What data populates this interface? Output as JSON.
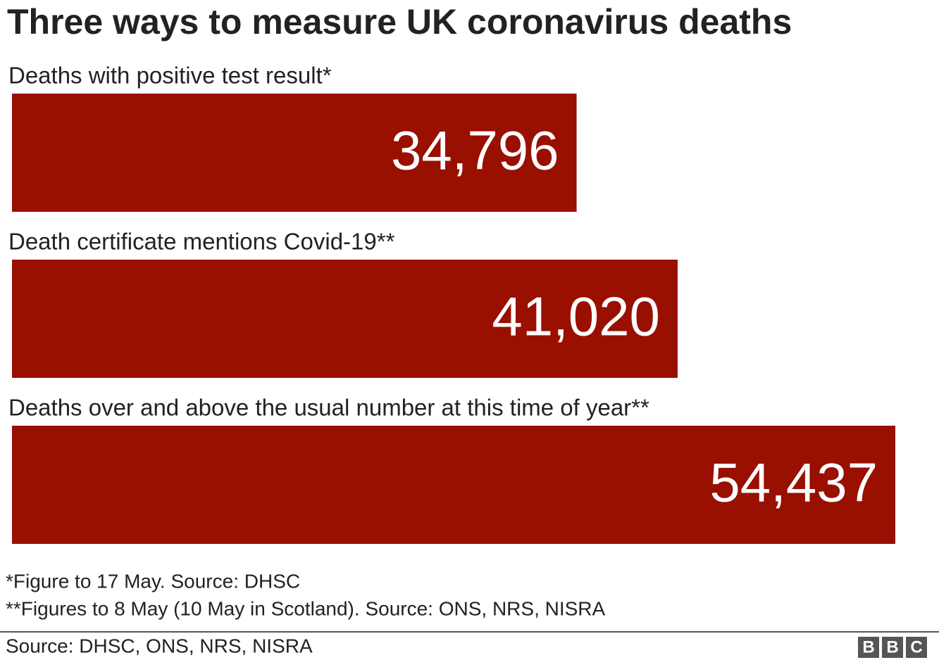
{
  "chart_data": {
    "type": "bar",
    "orientation": "horizontal",
    "title": "Three ways to measure UK coronavirus deaths",
    "categories": [
      "Deaths with positive test result*",
      "Death certificate mentions Covid-19**",
      "Deaths over and above the usual number at this time of year**"
    ],
    "values": [
      34796,
      41020,
      54437
    ],
    "value_labels": [
      "34,796",
      "41,020",
      "54,437"
    ],
    "color": "#990f00",
    "notes": [
      "*Figure to 17 May. Source: DHSC",
      "**Figures to 8 May (10 May in Scotland). Source: ONS, NRS, NISRA"
    ],
    "source": "Source: DHSC, ONS, NRS, NISRA",
    "logo": [
      "B",
      "B",
      "C"
    ]
  }
}
